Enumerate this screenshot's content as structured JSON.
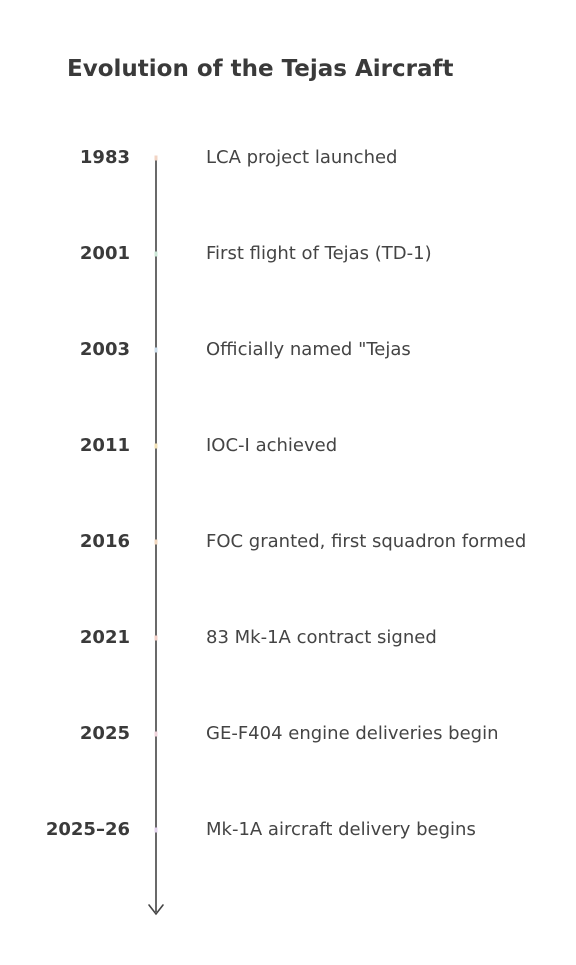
{
  "title": "Evolution of the Tejas Aircraft",
  "events": [
    {
      "year": "1983",
      "label": "LCA project launched"
    },
    {
      "year": "2001",
      "label": "First flight of Tejas (TD-1)"
    },
    {
      "year": "2003",
      "label": "Officially named \"Tejas"
    },
    {
      "year": "2011",
      "label": "IOC-I achieved"
    },
    {
      "year": "2016",
      "label": "FOC granted, first squadron formed"
    },
    {
      "year": "2021",
      "label": "83 Mk-1A contract signed"
    },
    {
      "year": "2025",
      "label": "GE-F404 engine deliveries begin"
    },
    {
      "year": "2025–26",
      "label": "Mk-1A aircraft delivery begins"
    }
  ]
}
